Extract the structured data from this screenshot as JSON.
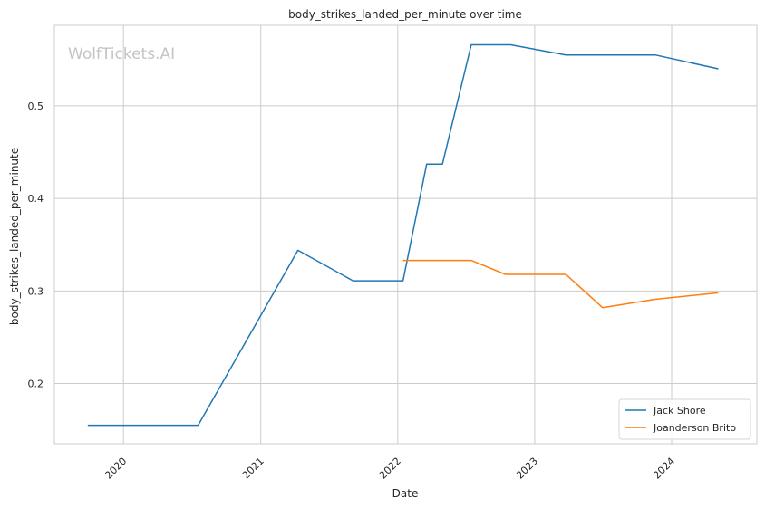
{
  "chart_data": {
    "type": "line",
    "title": "body_strikes_landed_per_minute over time",
    "xlabel": "Date",
    "ylabel": "body_strikes_landed_per_minute",
    "x_ticks": [
      "2020",
      "2021",
      "2022",
      "2023",
      "2024"
    ],
    "y_ticks": [
      "0.2",
      "0.3",
      "0.4",
      "0.5"
    ],
    "xlim": [
      "2019-07-01",
      "2024-08-15"
    ],
    "ylim": [
      0.135,
      0.587
    ],
    "grid": true,
    "legend_position": "bottom-right",
    "watermark": "WolfTickets.AI",
    "series": [
      {
        "name": "Jack Shore",
        "color": "#1f77b4",
        "points": [
          {
            "x": "2019-09-28",
            "y": 0.155
          },
          {
            "x": "2020-07-18",
            "y": 0.155
          },
          {
            "x": "2021-04-10",
            "y": 0.344
          },
          {
            "x": "2021-09-04",
            "y": 0.311
          },
          {
            "x": "2022-01-15",
            "y": 0.311
          },
          {
            "x": "2022-03-19",
            "y": 0.437
          },
          {
            "x": "2022-04-30",
            "y": 0.437
          },
          {
            "x": "2022-07-16",
            "y": 0.566
          },
          {
            "x": "2022-10-29",
            "y": 0.566
          },
          {
            "x": "2023-03-25",
            "y": 0.555
          },
          {
            "x": "2023-11-18",
            "y": 0.555
          },
          {
            "x": "2024-05-04",
            "y": 0.54
          }
        ]
      },
      {
        "name": "Joanderson Brito",
        "color": "#ff7f0e",
        "points": [
          {
            "x": "2022-01-15",
            "y": 0.333
          },
          {
            "x": "2022-07-16",
            "y": 0.333
          },
          {
            "x": "2022-10-15",
            "y": 0.318
          },
          {
            "x": "2023-03-25",
            "y": 0.318
          },
          {
            "x": "2023-07-01",
            "y": 0.282
          },
          {
            "x": "2023-11-18",
            "y": 0.291
          },
          {
            "x": "2024-05-04",
            "y": 0.298
          }
        ]
      }
    ]
  }
}
